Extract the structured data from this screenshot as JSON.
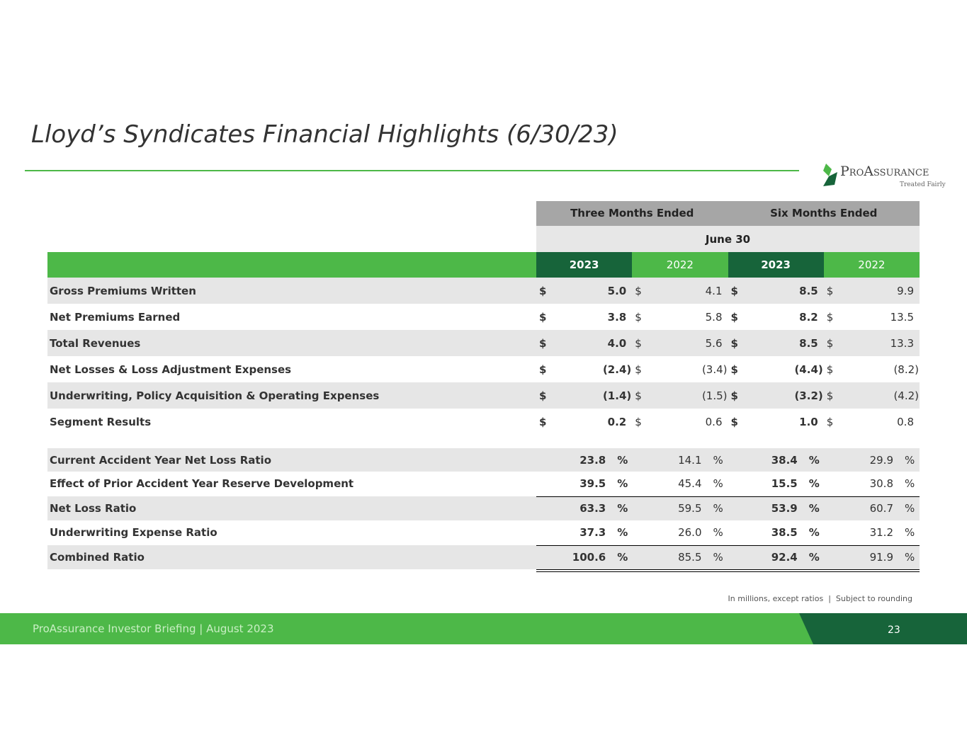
{
  "header": {
    "title": "Lloyd’s Syndicates Financial Highlights (6/30/23)"
  },
  "logo": {
    "name": "ProAssurance",
    "tagline": "Treated Fairly"
  },
  "table": {
    "group_headers": [
      "Three Months Ended",
      "Six Months Ended"
    ],
    "period": "June 30",
    "years": [
      "2023",
      "2022",
      "2023",
      "2022"
    ],
    "financial_rows": [
      {
        "label": "Gross Premiums Written",
        "cells": [
          {
            "currency": "$",
            "value": "5.0"
          },
          {
            "currency": "$",
            "value": "4.1"
          },
          {
            "currency": "$",
            "value": "8.5"
          },
          {
            "currency": "$",
            "value": "9.9"
          }
        ]
      },
      {
        "label": "Net Premiums Earned",
        "cells": [
          {
            "currency": "$",
            "value": "3.8"
          },
          {
            "currency": "$",
            "value": "5.8"
          },
          {
            "currency": "$",
            "value": "8.2"
          },
          {
            "currency": "$",
            "value": "13.5"
          }
        ]
      },
      {
        "label": "Total Revenues",
        "cells": [
          {
            "currency": "$",
            "value": "4.0"
          },
          {
            "currency": "$",
            "value": "5.6"
          },
          {
            "currency": "$",
            "value": "8.5"
          },
          {
            "currency": "$",
            "value": "13.3"
          }
        ]
      },
      {
        "label": "Net Losses & Loss Adjustment Expenses",
        "cells": [
          {
            "currency": "$",
            "value": "(2.4)"
          },
          {
            "currency": "$",
            "value": "(3.4)"
          },
          {
            "currency": "$",
            "value": "(4.4)"
          },
          {
            "currency": "$",
            "value": "(8.2)"
          }
        ]
      },
      {
        "label": "Underwriting, Policy Acquisition & Operating Expenses",
        "cells": [
          {
            "currency": "$",
            "value": "(1.4)"
          },
          {
            "currency": "$",
            "value": "(1.5)"
          },
          {
            "currency": "$",
            "value": "(3.2)"
          },
          {
            "currency": "$",
            "value": "(4.2)"
          }
        ]
      },
      {
        "label": "Segment Results",
        "cells": [
          {
            "currency": "$",
            "value": "0.2"
          },
          {
            "currency": "$",
            "value": "0.6"
          },
          {
            "currency": "$",
            "value": "1.0"
          },
          {
            "currency": "$",
            "value": "0.8"
          }
        ]
      }
    ],
    "ratio_rows": [
      {
        "label": "Current Accident Year Net Loss Ratio",
        "cells": [
          {
            "value": "23.8",
            "unit": "%"
          },
          {
            "value": "14.1",
            "unit": "%"
          },
          {
            "value": "38.4",
            "unit": "%"
          },
          {
            "value": "29.9",
            "unit": "%"
          }
        ]
      },
      {
        "label": "Effect of Prior Accident Year Reserve Development",
        "cells": [
          {
            "value": "39.5",
            "unit": "%"
          },
          {
            "value": "45.4",
            "unit": "%"
          },
          {
            "value": "15.5",
            "unit": "%"
          },
          {
            "value": "30.8",
            "unit": "%"
          }
        ]
      },
      {
        "label": "Net Loss Ratio",
        "cells": [
          {
            "value": "63.3",
            "unit": "%"
          },
          {
            "value": "59.5",
            "unit": "%"
          },
          {
            "value": "53.9",
            "unit": "%"
          },
          {
            "value": "60.7",
            "unit": "%"
          }
        ]
      },
      {
        "label": "Underwriting Expense Ratio",
        "cells": [
          {
            "value": "37.3",
            "unit": "%"
          },
          {
            "value": "26.0",
            "unit": "%"
          },
          {
            "value": "38.5",
            "unit": "%"
          },
          {
            "value": "31.2",
            "unit": "%"
          }
        ]
      },
      {
        "label": "Combined Ratio",
        "cells": [
          {
            "value": "100.6",
            "unit": "%"
          },
          {
            "value": "85.5",
            "unit": "%"
          },
          {
            "value": "92.4",
            "unit": "%"
          },
          {
            "value": "91.9",
            "unit": "%"
          }
        ]
      }
    ],
    "footnote": "In millions, except ratios  |  Subject to rounding"
  },
  "footer": {
    "text": "ProAssurance Investor Briefing | August 2023",
    "page": "23"
  }
}
